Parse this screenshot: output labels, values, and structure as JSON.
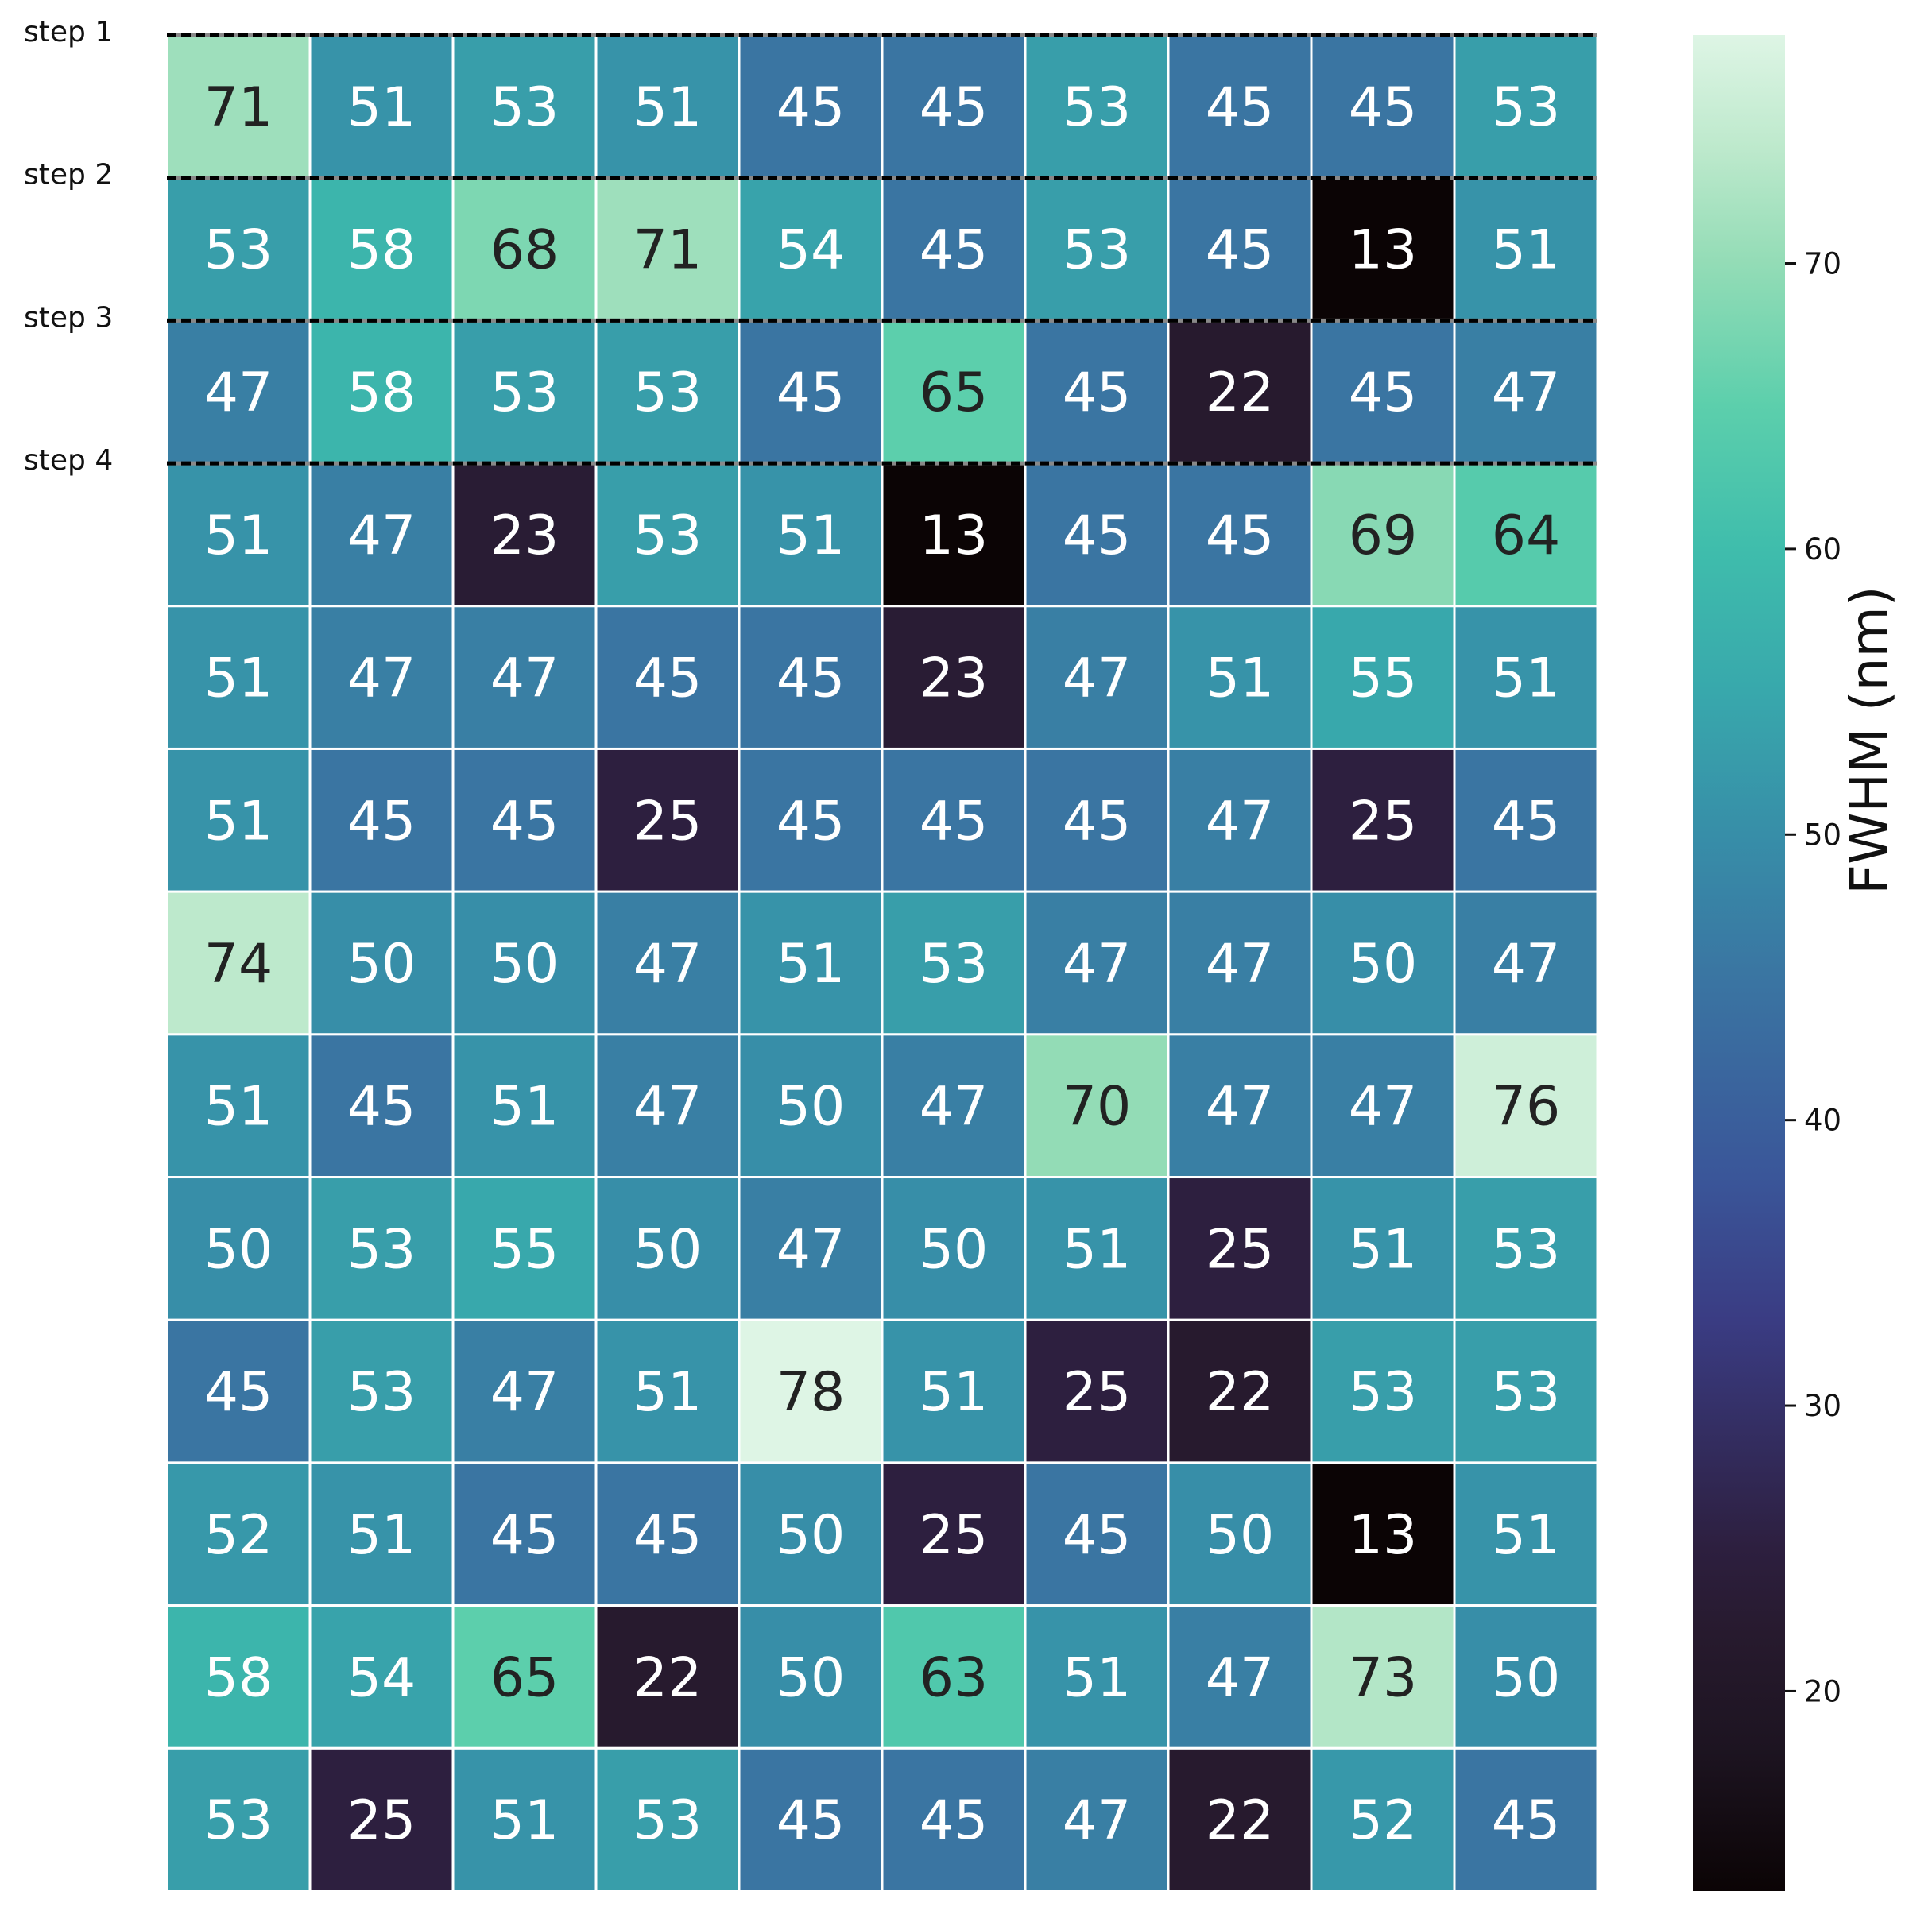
{
  "chart_data": {
    "type": "heatmap",
    "rows": 13,
    "cols": 10,
    "values": [
      [
        71,
        51,
        53,
        51,
        45,
        45,
        53,
        45,
        45,
        53
      ],
      [
        53,
        58,
        68,
        71,
        54,
        45,
        53,
        45,
        13,
        51
      ],
      [
        47,
        58,
        53,
        53,
        45,
        65,
        45,
        22,
        45,
        47
      ],
      [
        51,
        47,
        23,
        53,
        51,
        13,
        45,
        45,
        69,
        64
      ],
      [
        51,
        47,
        47,
        45,
        45,
        23,
        47,
        51,
        55,
        51
      ],
      [
        51,
        45,
        45,
        25,
        45,
        45,
        45,
        47,
        25,
        45
      ],
      [
        74,
        50,
        50,
        47,
        51,
        53,
        47,
        47,
        50,
        47
      ],
      [
        51,
        45,
        51,
        47,
        50,
        47,
        70,
        47,
        47,
        76
      ],
      [
        50,
        53,
        55,
        50,
        47,
        50,
        51,
        25,
        51,
        53
      ],
      [
        45,
        53,
        47,
        51,
        78,
        51,
        25,
        22,
        53,
        53
      ],
      [
        52,
        51,
        45,
        45,
        50,
        25,
        45,
        50,
        13,
        51
      ],
      [
        58,
        54,
        65,
        22,
        50,
        63,
        51,
        47,
        73,
        50
      ],
      [
        53,
        25,
        51,
        53,
        45,
        45,
        47,
        22,
        52,
        45
      ]
    ],
    "step_labels": [
      "step 1",
      "step 2",
      "step 3",
      "step 4"
    ],
    "colorbar": {
      "label": "FWHM (nm)",
      "range": [
        13,
        78
      ],
      "ticks": [
        20,
        30,
        40,
        50,
        60,
        70
      ],
      "colormap": "mako",
      "stops": [
        {
          "v": 13,
          "color": "#0b0405"
        },
        {
          "v": 18,
          "color": "#1d1421"
        },
        {
          "v": 22,
          "color": "#271a2e"
        },
        {
          "v": 25,
          "color": "#2d1f3f"
        },
        {
          "v": 33,
          "color": "#3a3c83"
        },
        {
          "v": 38,
          "color": "#3a5699"
        },
        {
          "v": 45,
          "color": "#3a75a2"
        },
        {
          "v": 50,
          "color": "#378ea8"
        },
        {
          "v": 55,
          "color": "#38a8ac"
        },
        {
          "v": 60,
          "color": "#3fbdac"
        },
        {
          "v": 65,
          "color": "#5ccfac"
        },
        {
          "v": 70,
          "color": "#93dcb6"
        },
        {
          "v": 74,
          "color": "#bde9cc"
        },
        {
          "v": 78,
          "color": "#def5e5"
        }
      ]
    },
    "grid_line_color": "#ffffff",
    "step_line_colors": [
      "#000000",
      "#888888"
    ]
  }
}
